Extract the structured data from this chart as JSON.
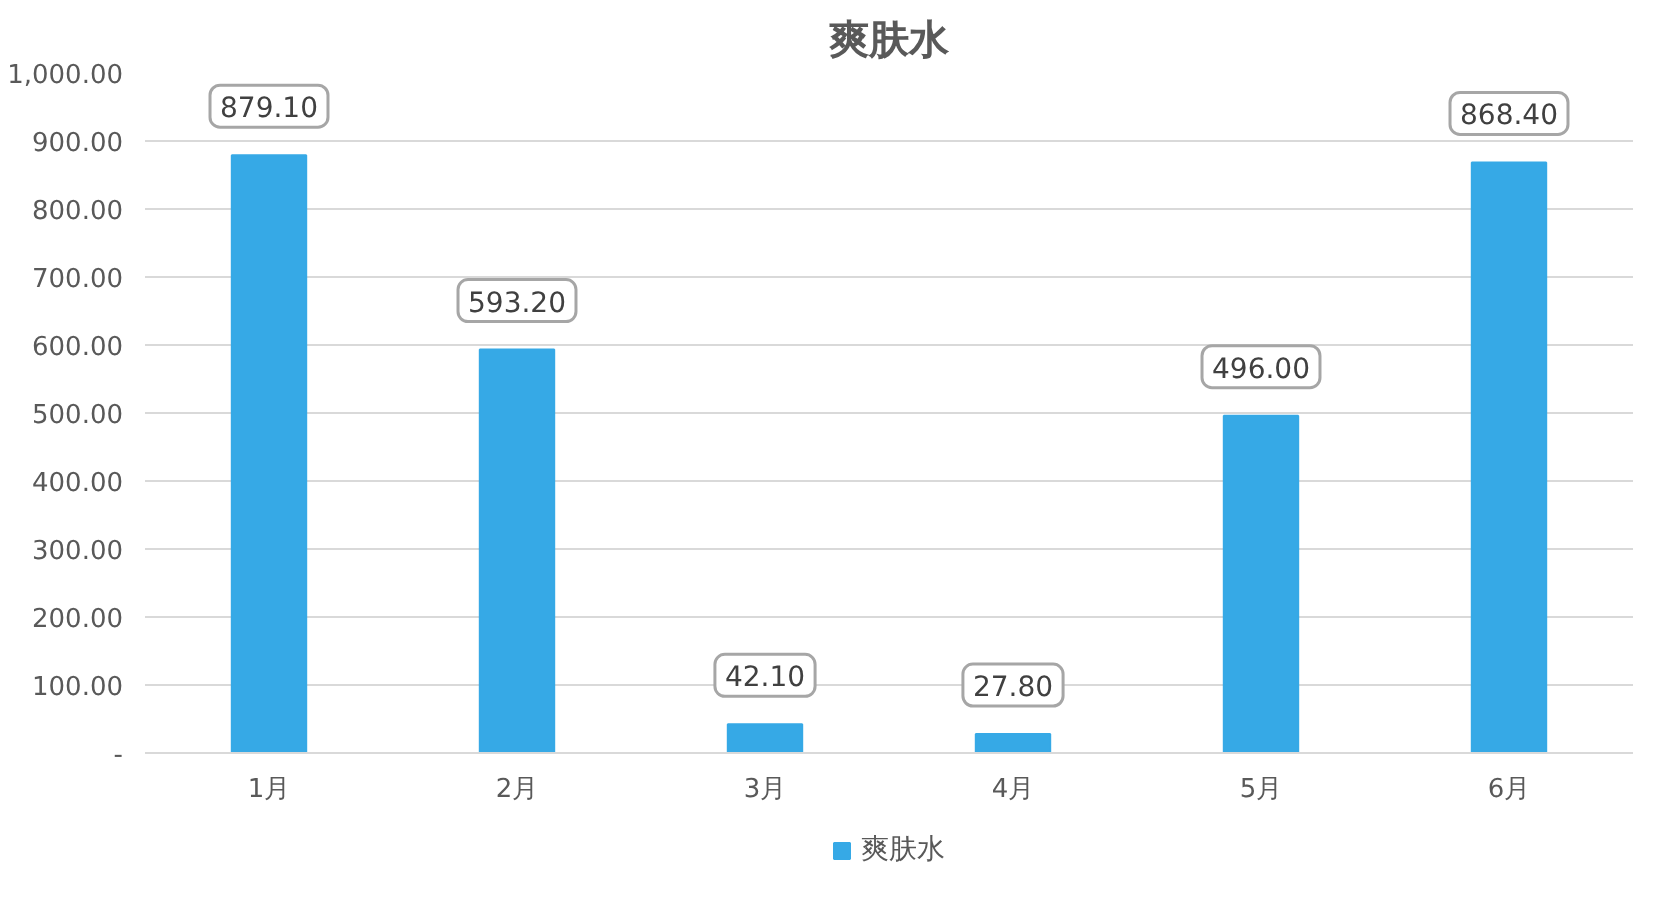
{
  "chart_data": {
    "type": "bar",
    "title": "爽肤水",
    "categories": [
      "1月",
      "2月",
      "3月",
      "4月",
      "5月",
      "6月"
    ],
    "series": [
      {
        "name": "爽肤水",
        "color": "#36a9e6",
        "values": [
          879.1,
          593.2,
          42.1,
          27.8,
          496.0,
          868.4
        ],
        "value_labels": [
          "879.10",
          "593.20",
          "42.10",
          "27.80",
          "496.00",
          "868.40"
        ]
      }
    ],
    "ylim": [
      0,
      1000
    ],
    "yticks": [
      {
        "value": 0,
        "label": "-"
      },
      {
        "value": 100,
        "label": "100.00"
      },
      {
        "value": 200,
        "label": "200.00"
      },
      {
        "value": 300,
        "label": "300.00"
      },
      {
        "value": 400,
        "label": "400.00"
      },
      {
        "value": 500,
        "label": "500.00"
      },
      {
        "value": 600,
        "label": "600.00"
      },
      {
        "value": 700,
        "label": "700.00"
      },
      {
        "value": 800,
        "label": "800.00"
      },
      {
        "value": 900,
        "label": "900.00"
      },
      {
        "value": 1000,
        "label": "1,000.00"
      }
    ],
    "grid": "y",
    "legend": "bottom"
  }
}
